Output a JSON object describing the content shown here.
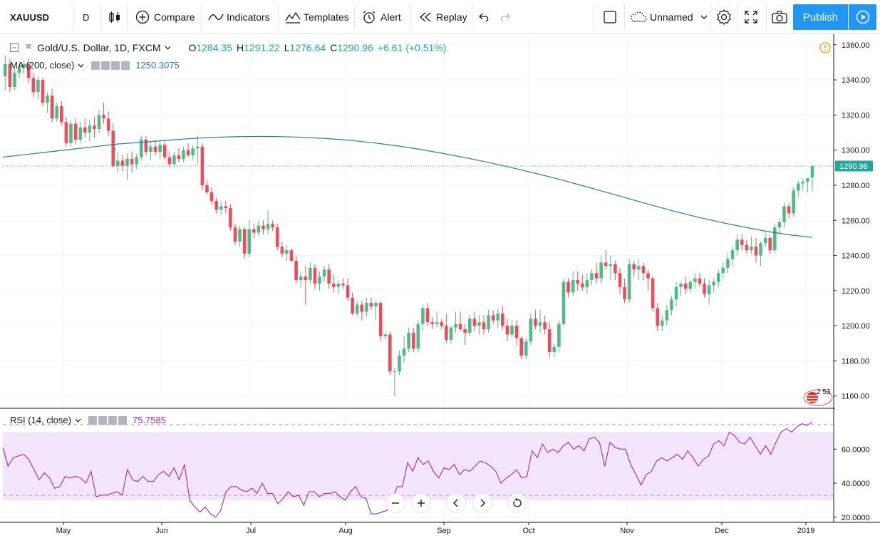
{
  "toolbar": {
    "symbol": "XAUUSD",
    "interval": "D",
    "compare": "Compare",
    "indicators": "Indicators",
    "templates": "Templates",
    "alert": "Alert",
    "replay": "Replay",
    "layout_name": "Unnamed",
    "publish": "Publish"
  },
  "legend": {
    "title": "Gold/U.S. Dollar, 1D, FXCM",
    "o_label": "O",
    "o": "1284.35",
    "h_label": "H",
    "h": "1291.22",
    "l_label": "L",
    "l": "1276.64",
    "c_label": "C",
    "c": "1290.96",
    "change": "+6.61 (+0.51%)",
    "ma_label": "MA (200, close)",
    "ma_value": "1250.3075",
    "rsi_label": "RSI (14, close)",
    "rsi_value": "75.7585",
    "flag_badge": "2 53"
  },
  "colors": {
    "up": "#53b987",
    "down": "#eb4d5c",
    "ma": "#2e78a8",
    "rsi": "#9c27b0",
    "rsi_band": "#f3e5fb",
    "last_price": "#26a69a",
    "accent": "#2196f3"
  },
  "chart_data": [
    {
      "type": "candlestick",
      "title": "Gold/U.S. Dollar, 1D, FXCM",
      "y_ticks": [
        "1360.00",
        "1340.00",
        "1320.00",
        "1300.00",
        "1280.00",
        "1260.00",
        "1240.00",
        "1220.00",
        "1200.00",
        "1180.00",
        "1160.00"
      ],
      "x_ticks": [
        "May",
        "Jun",
        "Jul",
        "Aug",
        "Sep",
        "Oct",
        "Nov",
        "Dec",
        "2019"
      ],
      "ylim": [
        1153,
        1366
      ],
      "last_price_label": "1290.96",
      "candles": [
        [
          1342,
          1354,
          1334,
          1349
        ],
        [
          1349,
          1352,
          1333,
          1336
        ],
        [
          1336,
          1347,
          1334,
          1344
        ],
        [
          1344,
          1349,
          1341,
          1347
        ],
        [
          1347,
          1351,
          1343,
          1349
        ],
        [
          1349,
          1352,
          1338,
          1341
        ],
        [
          1341,
          1344,
          1330,
          1333
        ],
        [
          1333,
          1342,
          1329,
          1340
        ],
        [
          1340,
          1341,
          1325,
          1327
        ],
        [
          1327,
          1333,
          1321,
          1331
        ],
        [
          1331,
          1335,
          1316,
          1318
        ],
        [
          1318,
          1327,
          1316,
          1325
        ],
        [
          1325,
          1328,
          1314,
          1316
        ],
        [
          1316,
          1319,
          1302,
          1304
        ],
        [
          1304,
          1317,
          1302,
          1315
        ],
        [
          1315,
          1318,
          1303,
          1306
        ],
        [
          1306,
          1316,
          1304,
          1313
        ],
        [
          1313,
          1318,
          1307,
          1310
        ],
        [
          1310,
          1317,
          1305,
          1314
        ],
        [
          1314,
          1319,
          1307,
          1312
        ],
        [
          1312,
          1323,
          1310,
          1320
        ],
        [
          1320,
          1327,
          1315,
          1318
        ],
        [
          1318,
          1322,
          1308,
          1311
        ],
        [
          1311,
          1315,
          1290,
          1291
        ],
        [
          1291,
          1299,
          1287,
          1294
        ],
        [
          1294,
          1297,
          1288,
          1291
        ],
        [
          1291,
          1298,
          1283,
          1295
        ],
        [
          1295,
          1299,
          1287,
          1292
        ],
        [
          1292,
          1298,
          1289,
          1296
        ],
        [
          1296,
          1308,
          1294,
          1306
        ],
        [
          1306,
          1308,
          1297,
          1299
        ],
        [
          1299,
          1305,
          1294,
          1302
        ],
        [
          1302,
          1306,
          1297,
          1299
        ],
        [
          1299,
          1305,
          1295,
          1303
        ],
        [
          1303,
          1305,
          1294,
          1296
        ],
        [
          1296,
          1299,
          1290,
          1292
        ],
        [
          1292,
          1299,
          1290,
          1297
        ],
        [
          1297,
          1301,
          1293,
          1295
        ],
        [
          1295,
          1302,
          1293,
          1300
        ],
        [
          1300,
          1304,
          1296,
          1297
        ],
        [
          1297,
          1303,
          1294,
          1301
        ],
        [
          1301,
          1308,
          1292,
          1302
        ],
        [
          1302,
          1304,
          1277,
          1280
        ],
        [
          1280,
          1283,
          1275,
          1276
        ],
        [
          1276,
          1279,
          1269,
          1271
        ],
        [
          1271,
          1273,
          1264,
          1266
        ],
        [
          1266,
          1271,
          1263,
          1268
        ],
        [
          1268,
          1271,
          1264,
          1267
        ],
        [
          1267,
          1269,
          1254,
          1256
        ],
        [
          1256,
          1258,
          1246,
          1248
        ],
        [
          1248,
          1257,
          1245,
          1255
        ],
        [
          1255,
          1256,
          1238,
          1241
        ],
        [
          1241,
          1260,
          1239,
          1255
        ],
        [
          1255,
          1258,
          1250,
          1253
        ],
        [
          1253,
          1260,
          1251,
          1257
        ],
        [
          1257,
          1260,
          1252,
          1255
        ],
        [
          1255,
          1266,
          1252,
          1258
        ],
        [
          1258,
          1260,
          1254,
          1256
        ],
        [
          1256,
          1258,
          1243,
          1245
        ],
        [
          1245,
          1248,
          1239,
          1241
        ],
        [
          1241,
          1246,
          1237,
          1243
        ],
        [
          1243,
          1244,
          1236,
          1237
        ],
        [
          1237,
          1240,
          1224,
          1226
        ],
        [
          1226,
          1231,
          1222,
          1228
        ],
        [
          1228,
          1234,
          1212,
          1226
        ],
        [
          1226,
          1236,
          1224,
          1233
        ],
        [
          1233,
          1235,
          1221,
          1224
        ],
        [
          1224,
          1231,
          1220,
          1228
        ],
        [
          1228,
          1234,
          1225,
          1232
        ],
        [
          1232,
          1235,
          1221,
          1224
        ],
        [
          1224,
          1229,
          1219,
          1222
        ],
        [
          1222,
          1226,
          1218,
          1224
        ],
        [
          1224,
          1227,
          1221,
          1223
        ],
        [
          1223,
          1227,
          1214,
          1216
        ],
        [
          1216,
          1219,
          1206,
          1207
        ],
        [
          1207,
          1214,
          1205,
          1212
        ],
        [
          1212,
          1214,
          1203,
          1208
        ],
        [
          1208,
          1216,
          1205,
          1213
        ],
        [
          1213,
          1216,
          1209,
          1211
        ],
        [
          1211,
          1214,
          1203,
          1213
        ],
        [
          1213,
          1214,
          1191,
          1194
        ],
        [
          1194,
          1196,
          1192,
          1195
        ],
        [
          1195,
          1197,
          1172,
          1174
        ],
        [
          1174,
          1176,
          1160,
          1174
        ],
        [
          1174,
          1186,
          1172,
          1183
        ],
        [
          1183,
          1194,
          1179,
          1187
        ],
        [
          1187,
          1199,
          1185,
          1196
        ],
        [
          1196,
          1199,
          1185,
          1187
        ],
        [
          1187,
          1203,
          1185,
          1201
        ],
        [
          1201,
          1212,
          1197,
          1210
        ],
        [
          1210,
          1213,
          1200,
          1202
        ],
        [
          1202,
          1205,
          1198,
          1201
        ],
        [
          1201,
          1208,
          1199,
          1202
        ],
        [
          1202,
          1204,
          1198,
          1200
        ],
        [
          1200,
          1207,
          1190,
          1192
        ],
        [
          1192,
          1200,
          1190,
          1199
        ],
        [
          1199,
          1208,
          1196,
          1201
        ],
        [
          1201,
          1208,
          1197,
          1198
        ],
        [
          1198,
          1201,
          1189,
          1196
        ],
        [
          1196,
          1206,
          1194,
          1204
        ],
        [
          1204,
          1208,
          1197,
          1200
        ],
        [
          1200,
          1206,
          1195,
          1202
        ],
        [
          1202,
          1206,
          1195,
          1198
        ],
        [
          1198,
          1209,
          1196,
          1206
        ],
        [
          1206,
          1209,
          1201,
          1203
        ],
        [
          1203,
          1210,
          1199,
          1207
        ],
        [
          1207,
          1211,
          1198,
          1200
        ],
        [
          1200,
          1204,
          1191,
          1195
        ],
        [
          1195,
          1203,
          1193,
          1200
        ],
        [
          1200,
          1203,
          1189,
          1193
        ],
        [
          1193,
          1194,
          1181,
          1183
        ],
        [
          1183,
          1193,
          1181,
          1191
        ],
        [
          1191,
          1207,
          1189,
          1204
        ],
        [
          1204,
          1209,
          1198,
          1200
        ],
        [
          1200,
          1209,
          1196,
          1202
        ],
        [
          1202,
          1206,
          1195,
          1198
        ],
        [
          1198,
          1202,
          1182,
          1185
        ],
        [
          1185,
          1190,
          1182,
          1188
        ],
        [
          1188,
          1203,
          1185,
          1201
        ],
        [
          1201,
          1227,
          1200,
          1225
        ],
        [
          1225,
          1227,
          1216,
          1219
        ],
        [
          1219,
          1231,
          1217,
          1226
        ],
        [
          1226,
          1231,
          1220,
          1224
        ],
        [
          1224,
          1229,
          1220,
          1222
        ],
        [
          1222,
          1230,
          1218,
          1226
        ],
        [
          1226,
          1232,
          1223,
          1230
        ],
        [
          1230,
          1236,
          1224,
          1227
        ],
        [
          1227,
          1240,
          1224,
          1236
        ],
        [
          1236,
          1243,
          1232,
          1234
        ],
        [
          1234,
          1240,
          1226,
          1235
        ],
        [
          1235,
          1237,
          1226,
          1230
        ],
        [
          1230,
          1233,
          1218,
          1222
        ],
        [
          1222,
          1227,
          1213,
          1215
        ],
        [
          1215,
          1238,
          1213,
          1235
        ],
        [
          1235,
          1237,
          1228,
          1232
        ],
        [
          1232,
          1238,
          1226,
          1234
        ],
        [
          1234,
          1236,
          1226,
          1230
        ],
        [
          1230,
          1232,
          1220,
          1227
        ],
        [
          1227,
          1228,
          1208,
          1210
        ],
        [
          1210,
          1213,
          1197,
          1200
        ],
        [
          1200,
          1206,
          1197,
          1203
        ],
        [
          1203,
          1212,
          1200,
          1209
        ],
        [
          1209,
          1217,
          1206,
          1215
        ],
        [
          1215,
          1225,
          1211,
          1222
        ],
        [
          1222,
          1225,
          1217,
          1224
        ],
        [
          1224,
          1228,
          1218,
          1221
        ],
        [
          1221,
          1226,
          1219,
          1225
        ],
        [
          1225,
          1230,
          1221,
          1227
        ],
        [
          1227,
          1230,
          1222,
          1224
        ],
        [
          1224,
          1227,
          1216,
          1218
        ],
        [
          1218,
          1226,
          1212,
          1223
        ],
        [
          1223,
          1227,
          1219,
          1225
        ],
        [
          1225,
          1232,
          1222,
          1230
        ],
        [
          1230,
          1236,
          1227,
          1233
        ],
        [
          1233,
          1241,
          1230,
          1238
        ],
        [
          1238,
          1245,
          1234,
          1243
        ],
        [
          1243,
          1252,
          1240,
          1249
        ],
        [
          1249,
          1252,
          1243,
          1246
        ],
        [
          1246,
          1249,
          1241,
          1243
        ],
        [
          1243,
          1251,
          1241,
          1245
        ],
        [
          1245,
          1250,
          1236,
          1240
        ],
        [
          1240,
          1248,
          1234,
          1247
        ],
        [
          1247,
          1253,
          1245,
          1250
        ],
        [
          1250,
          1251,
          1241,
          1243
        ],
        [
          1243,
          1258,
          1241,
          1256
        ],
        [
          1256,
          1261,
          1252,
          1259
        ],
        [
          1259,
          1270,
          1256,
          1268
        ],
        [
          1268,
          1270,
          1261,
          1264
        ],
        [
          1264,
          1279,
          1262,
          1277
        ],
        [
          1277,
          1283,
          1273,
          1281
        ],
        [
          1281,
          1284,
          1277,
          1282
        ],
        [
          1282,
          1284,
          1276,
          1284
        ],
        [
          1284.35,
          1291.22,
          1276.64,
          1290.96
        ]
      ],
      "series": [
        {
          "name": "MA (200, close)",
          "values": [
            1296,
            1297.5,
            1299,
            1300.5,
            1302,
            1303.5,
            1304.5,
            1305.5,
            1306.5,
            1307.2,
            1307.6,
            1307.8,
            1307.7,
            1307.3,
            1306.6,
            1305.6,
            1304.2,
            1302.5,
            1300.5,
            1298.2,
            1295.7,
            1293,
            1290,
            1286.9,
            1283.6,
            1280,
            1276.3,
            1272.6,
            1268.9,
            1265.3,
            1262,
            1259,
            1256.3,
            1253.8,
            1251.8,
            1250.3
          ]
        }
      ]
    },
    {
      "type": "line",
      "title": "RSI (14, close)",
      "y_ticks": [
        "60.0000",
        "40.0000",
        "20.0000"
      ],
      "ylim": [
        17,
        84
      ],
      "band": [
        30,
        70
      ],
      "series": [
        {
          "name": "RSI (14, close)",
          "values": [
            61,
            50,
            55,
            56,
            57,
            54,
            48,
            42,
            46,
            43,
            37,
            38,
            44,
            43,
            44,
            43,
            40,
            47,
            32,
            33,
            33,
            34,
            35,
            33,
            48,
            42,
            41,
            44,
            41,
            41,
            45,
            47,
            44,
            49,
            42,
            51,
            30,
            26,
            23,
            26,
            22,
            20,
            24,
            35,
            38,
            38,
            36,
            35,
            37,
            34,
            40,
            34,
            34,
            28,
            31,
            35,
            32,
            33,
            27,
            35,
            35,
            32,
            34,
            34,
            35,
            32,
            30,
            35,
            38,
            32,
            31,
            22,
            22,
            23,
            24,
            30,
            38,
            38,
            52,
            47,
            55,
            51,
            53,
            47,
            43,
            49,
            48,
            51,
            45,
            48,
            47,
            50,
            53,
            52,
            50,
            47,
            40,
            43,
            45,
            48,
            43,
            44,
            59,
            55,
            63,
            58,
            60,
            58,
            62,
            64,
            60,
            62,
            59,
            66,
            67,
            64,
            50,
            64,
            61,
            60,
            60,
            51,
            45,
            39,
            45,
            47,
            53,
            55,
            53,
            55,
            57,
            54,
            59,
            55,
            50,
            54,
            56,
            63,
            65,
            62,
            70,
            68,
            64,
            63,
            67,
            62,
            57,
            62,
            57,
            64,
            70,
            72,
            70,
            73,
            75,
            74,
            76
          ]
        }
      ]
    }
  ]
}
